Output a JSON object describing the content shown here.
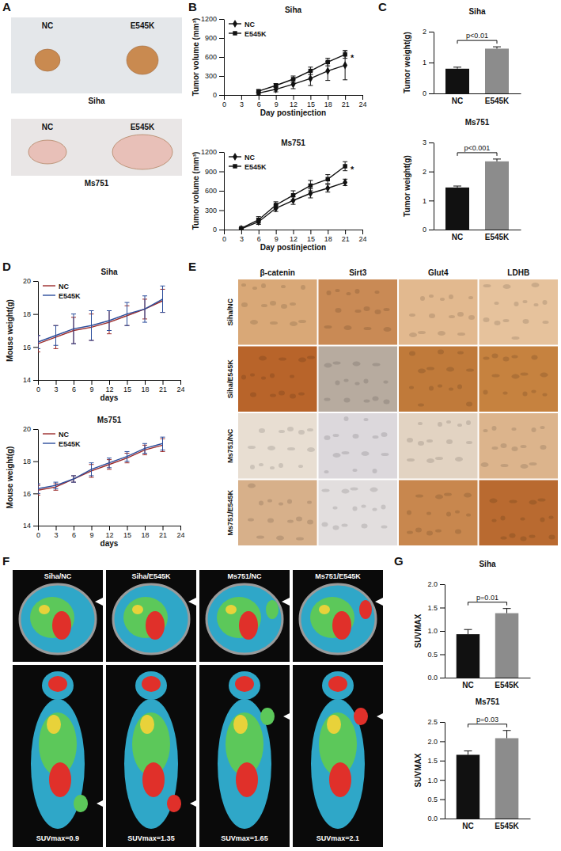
{
  "chart_data": [
    {
      "type": "line",
      "title": "Siha",
      "x_label": "Day postinjection",
      "y_label": "Tumor volume (mm³)",
      "x": [
        6,
        9,
        12,
        15,
        18,
        21
      ],
      "series": [
        {
          "name": "NC",
          "color": "#111111",
          "marker": "diamond",
          "values": [
            30,
            90,
            170,
            260,
            380,
            470
          ],
          "errors": [
            20,
            40,
            70,
            110,
            150,
            230
          ]
        },
        {
          "name": "E545K",
          "color": "#111111",
          "marker": "square",
          "values": [
            60,
            150,
            250,
            380,
            520,
            640
          ],
          "errors": [
            20,
            30,
            50,
            60,
            60,
            60
          ]
        }
      ],
      "xlim": [
        0,
        24
      ],
      "xticks": [
        0,
        3,
        6,
        9,
        12,
        15,
        18,
        21,
        24
      ],
      "ylim": [
        0,
        1200
      ],
      "yticks": [
        0,
        300,
        600,
        900,
        1200
      ],
      "legend": "upper left",
      "annotation": "*"
    },
    {
      "type": "line",
      "title": "Ms751",
      "x_label": "Day postinjection",
      "y_label": "Tumor volume (mm³)",
      "x": [
        3,
        6,
        9,
        12,
        15,
        18,
        21
      ],
      "series": [
        {
          "name": "NC",
          "color": "#111111",
          "marker": "diamond",
          "values": [
            10,
            120,
            330,
            450,
            560,
            640,
            730
          ],
          "errors": [
            10,
            40,
            50,
            60,
            70,
            60,
            50
          ]
        },
        {
          "name": "E545K",
          "color": "#111111",
          "marker": "square",
          "values": [
            20,
            150,
            380,
            530,
            680,
            780,
            980
          ],
          "errors": [
            10,
            50,
            50,
            70,
            80,
            70,
            70
          ]
        }
      ],
      "xlim": [
        0,
        24
      ],
      "xticks": [
        0,
        3,
        6,
        9,
        12,
        15,
        18,
        21,
        24
      ],
      "ylim": [
        0,
        1200
      ],
      "yticks": [
        0,
        300,
        600,
        900,
        1200
      ],
      "legend": "upper left",
      "annotation": "*"
    },
    {
      "type": "bar",
      "title": "Siha",
      "y_label": "Tumor weight(g)",
      "categories": [
        "NC",
        "E545K"
      ],
      "values": [
        0.8,
        1.45
      ],
      "errors": [
        0.05,
        0.06
      ],
      "colors": [
        "#111111",
        "#8c8c8c"
      ],
      "ylim": [
        0,
        2
      ],
      "yticks": [
        0,
        1,
        2
      ],
      "annotation": "p<0.01"
    },
    {
      "type": "bar",
      "title": "Ms751",
      "y_label": "Tumor weight(g)",
      "categories": [
        "NC",
        "E545K"
      ],
      "values": [
        1.45,
        2.35
      ],
      "errors": [
        0.05,
        0.08
      ],
      "colors": [
        "#111111",
        "#8c8c8c"
      ],
      "ylim": [
        0,
        3
      ],
      "yticks": [
        0,
        1,
        2,
        3
      ],
      "annotation": "p<0.001"
    },
    {
      "type": "line",
      "title": "Siha",
      "x_label": "days",
      "y_label": "Mouse weight(g)",
      "x": [
        0,
        3,
        6,
        9,
        12,
        15,
        18,
        21
      ],
      "series": [
        {
          "name": "NC",
          "color": "#9b2a2a",
          "marker": "none",
          "values": [
            16.2,
            16.6,
            17.0,
            17.2,
            17.5,
            17.9,
            18.3,
            18.8
          ],
          "errors": [
            0.5,
            0.7,
            0.8,
            0.8,
            0.7,
            0.6,
            0.6,
            0.7
          ]
        },
        {
          "name": "E545K",
          "color": "#2b4d9b",
          "marker": "none",
          "values": [
            16.3,
            16.7,
            17.1,
            17.3,
            17.6,
            18.0,
            18.3,
            18.9
          ],
          "errors": [
            0.4,
            0.6,
            0.9,
            0.9,
            0.6,
            0.7,
            0.8,
            0.8
          ]
        }
      ],
      "xlim": [
        0,
        24
      ],
      "xticks": [
        0,
        3,
        6,
        9,
        12,
        15,
        18,
        21,
        24
      ],
      "ylim": [
        14,
        20
      ],
      "yticks": [
        14,
        16,
        18,
        20
      ],
      "legend": "upper left"
    },
    {
      "type": "line",
      "title": "Ms751",
      "x_label": "days",
      "y_label": "Mouse weight(g)",
      "x": [
        0,
        3,
        6,
        9,
        12,
        15,
        18,
        21
      ],
      "series": [
        {
          "name": "NC",
          "color": "#9b2a2a",
          "marker": "none",
          "values": [
            16.2,
            16.4,
            16.9,
            17.4,
            17.8,
            18.2,
            18.7,
            19.0
          ],
          "errors": [
            0.3,
            0.2,
            0.2,
            0.4,
            0.3,
            0.3,
            0.3,
            0.4
          ]
        },
        {
          "name": "E545K",
          "color": "#2b4d9b",
          "marker": "none",
          "values": [
            16.3,
            16.5,
            16.9,
            17.5,
            17.9,
            18.3,
            18.8,
            19.1
          ],
          "errors": [
            0.3,
            0.2,
            0.2,
            0.4,
            0.3,
            0.3,
            0.3,
            0.4
          ]
        }
      ],
      "xlim": [
        0,
        24
      ],
      "xticks": [
        0,
        3,
        6,
        9,
        12,
        15,
        18,
        21,
        24
      ],
      "ylim": [
        14,
        20
      ],
      "yticks": [
        14,
        16,
        18,
        20
      ],
      "legend": "upper left"
    },
    {
      "type": "bar",
      "title": "Siha",
      "y_label": "SUVMAX",
      "categories": [
        "NC",
        "E545K"
      ],
      "values": [
        0.93,
        1.38
      ],
      "errors": [
        0.1,
        0.1
      ],
      "colors": [
        "#111111",
        "#8c8c8c"
      ],
      "ylim": [
        0,
        2
      ],
      "yticks": [
        {
          "value": 0,
          "label": "0.0"
        },
        0.5,
        {
          "value": 1,
          "label": "1.0"
        },
        1.5,
        {
          "value": 2,
          "label": "2.0"
        }
      ],
      "annotation": "p=0.01"
    },
    {
      "type": "bar",
      "title": "Ms751",
      "y_label": "SUVMAX",
      "categories": [
        "NC",
        "E545K"
      ],
      "values": [
        1.65,
        2.08
      ],
      "errors": [
        0.1,
        0.2
      ],
      "colors": [
        "#111111",
        "#8c8c8c"
      ],
      "ylim": [
        0,
        2.5
      ],
      "yticks": [
        {
          "value": 0,
          "label": "0.0"
        },
        0.5,
        {
          "value": 1,
          "label": "1.0"
        },
        1.5,
        {
          "value": 2,
          "label": "2.0"
        },
        2.5
      ],
      "annotation": "p=0.03"
    }
  ],
  "figure": {
    "panel_letters": [
      "A",
      "B",
      "C",
      "D",
      "E",
      "F",
      "G"
    ],
    "panel_a": {
      "labels": [
        [
          "NC",
          "E545K"
        ],
        [
          "NC",
          "E545K"
        ]
      ],
      "cell_lines": [
        "Siha",
        "Ms751"
      ]
    },
    "panel_e": {
      "columns": [
        "β-catenin",
        "Sirt3",
        "Glut4",
        "LDHB"
      ],
      "rows": [
        "Siha/NC",
        "Siha/E545K",
        "Ms751/NC",
        "Ms751/E545K"
      ]
    },
    "panel_f": {
      "labels": [
        "Siha/NC",
        "Siha/E545K",
        "Ms751/NC",
        "Ms751/E545K"
      ],
      "suv_labels": [
        "SUVmax=0.9",
        "SUVmax=1.35",
        "SUVmax=1.65",
        "SUVmax=2.1"
      ]
    }
  }
}
